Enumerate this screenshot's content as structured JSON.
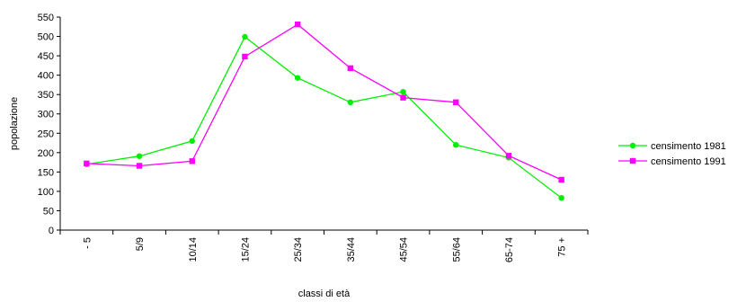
{
  "chart_data": {
    "type": "line",
    "categories": [
      "- 5",
      "5/9",
      "10/14",
      "15/24",
      "25/34",
      "35/44",
      "45/54",
      "55/64",
      "65-74",
      "75 +"
    ],
    "series": [
      {
        "name": "censimento 1981",
        "color": "#00ee00",
        "marker": "circle",
        "values": [
          170,
          191,
          230,
          499,
          393,
          330,
          357,
          220,
          187,
          83
        ]
      },
      {
        "name": "censimento 1991",
        "color": "#ff00ff",
        "marker": "square",
        "values": [
          172,
          166,
          178,
          448,
          531,
          418,
          342,
          330,
          192,
          130
        ]
      }
    ],
    "xlabel": "classi di età",
    "ylabel": "popolazione",
    "ylim": [
      0,
      550
    ],
    "yticks": [
      0,
      50,
      100,
      150,
      200,
      250,
      300,
      350,
      400,
      450,
      500,
      550
    ],
    "grid": false,
    "legend_position": "right"
  }
}
